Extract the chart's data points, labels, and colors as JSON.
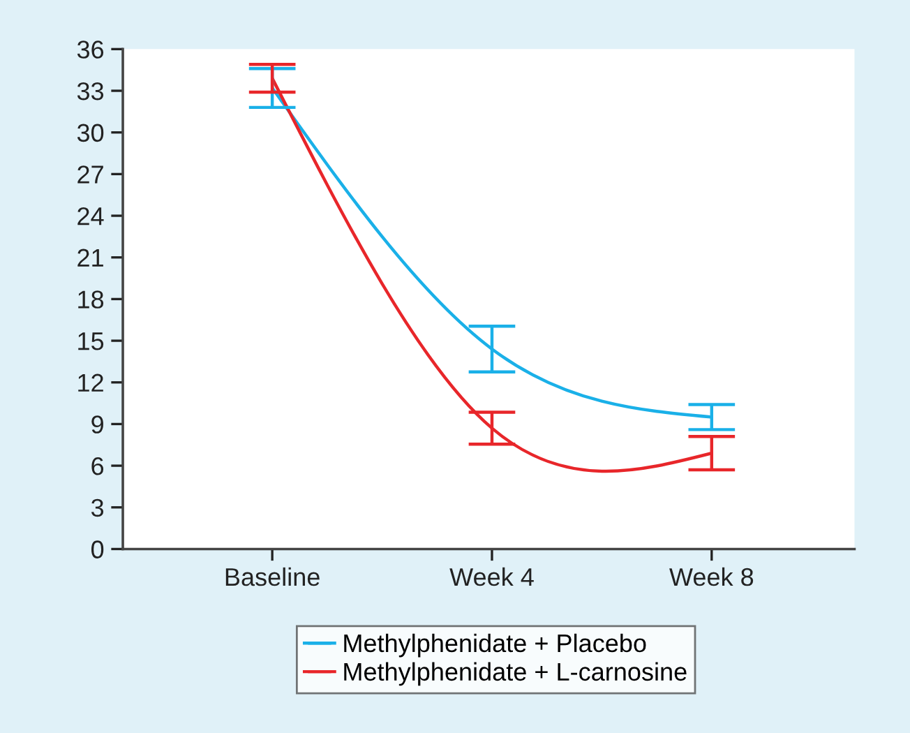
{
  "chart_data": {
    "type": "line",
    "categories": [
      "Baseline",
      "Week 4",
      "Week 8"
    ],
    "series": [
      {
        "name": "Methylphenidate + Placebo",
        "color": "#1ab0e8",
        "values": [
          33.2,
          14.4,
          9.5
        ],
        "errors": [
          1.4,
          1.65,
          0.9
        ]
      },
      {
        "name": "Methylphenidate + L-carnosine",
        "color": "#e8262a",
        "values": [
          33.9,
          8.7,
          6.9
        ],
        "errors": [
          1.0,
          1.15,
          1.2
        ]
      }
    ],
    "ylim": [
      0,
      36
    ],
    "yticks": [
      0,
      3,
      6,
      9,
      12,
      15,
      18,
      21,
      24,
      27,
      30,
      33,
      36
    ],
    "grid": false,
    "legend": "bottom",
    "marker": "none",
    "line_style": "solid"
  }
}
